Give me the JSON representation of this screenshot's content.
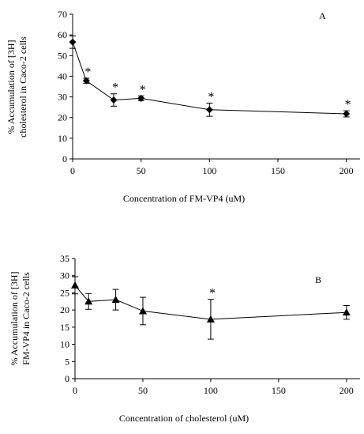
{
  "chart_data": [
    {
      "type": "line",
      "panel_label": "A",
      "title": "",
      "xlabel": "Concentration of FM-VP4 (uM)",
      "ylabel_lines": [
        "% Accumulation of [3H]",
        "cholesterol in Caco-2 cells"
      ],
      "xlim": [
        0,
        210
      ],
      "ylim": [
        0,
        70
      ],
      "xticks": [
        0,
        50,
        100,
        150,
        200
      ],
      "yticks": [
        0,
        10,
        20,
        30,
        40,
        50,
        60,
        70
      ],
      "marker": "diamond",
      "grid": false,
      "series": [
        {
          "points": [
            {
              "x": 0,
              "y": 56.5,
              "err": 3.0,
              "sig": false
            },
            {
              "x": 10,
              "y": 37.8,
              "err": 1.2,
              "sig": true
            },
            {
              "x": 30,
              "y": 28.5,
              "err": 3.0,
              "sig": true
            },
            {
              "x": 50,
              "y": 29.3,
              "err": 1.2,
              "sig": true
            },
            {
              "x": 100,
              "y": 23.8,
              "err": 3.2,
              "sig": true
            },
            {
              "x": 200,
              "y": 21.8,
              "err": 1.5,
              "sig": true
            }
          ]
        }
      ]
    },
    {
      "type": "line",
      "panel_label": "B",
      "title": "",
      "xlabel": "Concentration of cholesterol (uM)",
      "ylabel_lines": [
        "% Accumulation of [3H]",
        "FM-VP4 in Caco-2 cells"
      ],
      "xlim": [
        0,
        210
      ],
      "ylim": [
        0,
        35
      ],
      "xticks": [
        0,
        50,
        100,
        150,
        200
      ],
      "yticks": [
        0,
        5,
        10,
        15,
        20,
        25,
        30,
        35
      ],
      "marker": "triangle",
      "grid": false,
      "series": [
        {
          "points": [
            {
              "x": 0,
              "y": 27.2,
              "err": 2.5,
              "sig": false
            },
            {
              "x": 10,
              "y": 22.5,
              "err": 2.3,
              "sig": false
            },
            {
              "x": 30,
              "y": 23.0,
              "err": 3.0,
              "sig": false
            },
            {
              "x": 50,
              "y": 19.7,
              "err": 4.0,
              "sig": false
            },
            {
              "x": 100,
              "y": 17.3,
              "err": 5.8,
              "sig": true
            },
            {
              "x": 200,
              "y": 19.3,
              "err": 2.0,
              "sig": false
            }
          ]
        }
      ]
    }
  ]
}
